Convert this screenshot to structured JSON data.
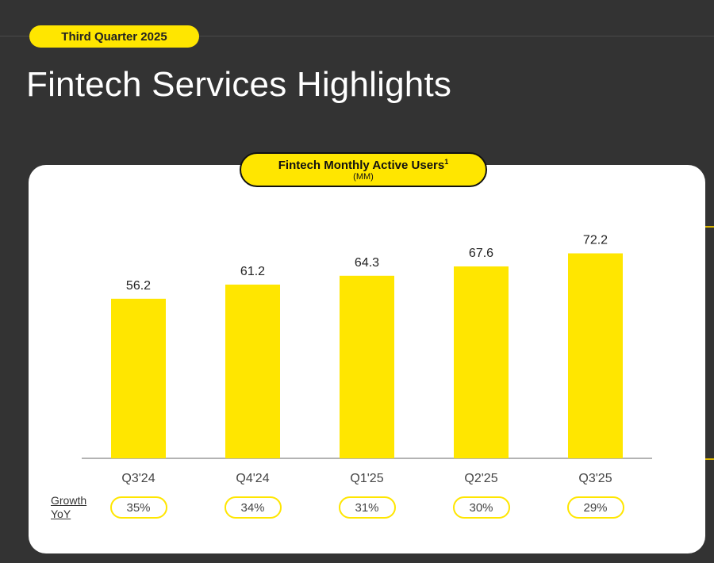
{
  "header": {
    "period_badge": "Third Quarter 2025",
    "title": "Fintech Services Highlights"
  },
  "chart_data": {
    "type": "bar",
    "title": "Fintech Monthly Active Users",
    "title_footnote": "1",
    "subtitle": "(MM)",
    "categories": [
      "Q3'24",
      "Q4'24",
      "Q1'25",
      "Q2'25",
      "Q3'25"
    ],
    "values": [
      56.2,
      61.2,
      64.3,
      67.6,
      72.2
    ],
    "value_labels": [
      "56.2",
      "61.2",
      "64.3",
      "67.6",
      "72.2"
    ],
    "ylim": [
      0,
      81
    ],
    "bar_color": "#ffe600",
    "growth_label": [
      "Growth",
      "YoY"
    ],
    "growth_yoy": [
      "35%",
      "34%",
      "31%",
      "30%",
      "29%"
    ]
  }
}
